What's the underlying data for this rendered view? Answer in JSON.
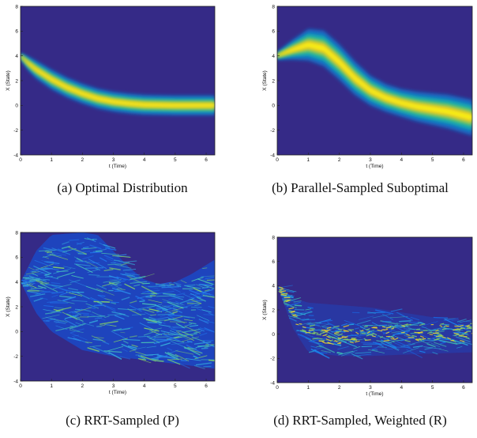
{
  "panels": [
    {
      "caption": "(a) Optimal Distribution",
      "chart_data": {
        "type": "heatmap",
        "title": "",
        "xlabel": "t (Time)",
        "ylabel": "X (State)",
        "xlim": [
          0,
          6.28
        ],
        "ylim": [
          -4,
          8
        ],
        "xticks": [
          "0",
          "1",
          "2",
          "3",
          "4",
          "5",
          "6"
        ],
        "yticks": [
          "-4",
          "-2",
          "0",
          "2",
          "4",
          "6",
          "8"
        ],
        "colormap": "parula",
        "background_color": "#352a87",
        "density_center": {
          "t": [
            0,
            0.25,
            0.5,
            1.0,
            1.5,
            2.0,
            2.5,
            3.0,
            3.5,
            4.0,
            5.0,
            6.28
          ],
          "x": [
            4.0,
            3.4,
            2.9,
            2.1,
            1.45,
            0.95,
            0.55,
            0.3,
            0.15,
            0.05,
            0.0,
            0.0
          ]
        },
        "density_halfwidth": [
          0.15,
          0.35,
          0.45,
          0.5,
          0.5,
          0.5,
          0.5,
          0.5,
          0.5,
          0.5,
          0.5,
          0.5
        ],
        "description_style": "smooth"
      }
    },
    {
      "caption": "(b) Parallel-Sampled Suboptimal",
      "chart_data": {
        "type": "heatmap",
        "title": "",
        "xlabel": "t (Time)",
        "ylabel": "X (State)",
        "xlim": [
          0,
          6.28
        ],
        "ylim": [
          -4,
          8
        ],
        "xticks": [
          "0",
          "1",
          "2",
          "3",
          "4",
          "5",
          "6"
        ],
        "yticks": [
          "-4",
          "-2",
          "0",
          "2",
          "4",
          "6",
          "8"
        ],
        "colormap": "parula",
        "background_color": "#352a87",
        "density_center": {
          "t": [
            0,
            0.5,
            1.0,
            1.5,
            2.0,
            2.5,
            3.0,
            3.5,
            4.0,
            4.5,
            5.0,
            5.5,
            6.28
          ],
          "x": [
            4.0,
            4.5,
            4.9,
            4.6,
            3.5,
            2.2,
            1.2,
            0.6,
            0.2,
            -0.1,
            -0.3,
            -0.5,
            -1.0
          ]
        },
        "density_halfwidth": [
          0.2,
          0.5,
          0.8,
          0.9,
          0.9,
          0.85,
          0.75,
          0.7,
          0.7,
          0.75,
          0.8,
          0.85,
          0.9
        ],
        "description_style": "smooth"
      }
    },
    {
      "caption": "(c) RRT-Sampled (P)",
      "chart_data": {
        "type": "heatmap",
        "title": "",
        "xlabel": "t (Time)",
        "ylabel": "X (State)",
        "xlim": [
          0,
          6.28
        ],
        "ylim": [
          -4,
          8
        ],
        "xticks": [
          "0",
          "1",
          "2",
          "3",
          "4",
          "5",
          "6"
        ],
        "yticks": [
          "-4",
          "-2",
          "0",
          "2",
          "4",
          "6",
          "8"
        ],
        "colormap": "parula",
        "background_color": "#352a87",
        "density_upper": {
          "t": [
            0,
            0.5,
            1.0,
            2.0,
            2.5,
            3.0,
            3.5,
            4.0,
            4.5,
            5.0,
            5.5,
            6.28
          ],
          "x": [
            4.0,
            6.5,
            7.8,
            8.0,
            7.8,
            6.5,
            5.2,
            4.2,
            3.8,
            4.0,
            4.6,
            5.8
          ]
        },
        "density_lower": {
          "t": [
            0,
            0.5,
            1.0,
            2.0,
            3.0,
            4.0,
            5.0,
            6.28
          ],
          "x": [
            4.0,
            1.5,
            0.0,
            -1.5,
            -2.0,
            -2.3,
            -2.6,
            -3.0
          ]
        },
        "description_style": "sparse-streaks"
      }
    },
    {
      "caption": "(d) RRT-Sampled, Weighted (R)",
      "chart_data": {
        "type": "heatmap",
        "title": "",
        "xlabel": "t (Time)",
        "ylabel": "X (State)",
        "xlim": [
          0,
          6.28
        ],
        "ylim": [
          -4,
          8
        ],
        "xticks": [
          "0",
          "1",
          "2",
          "3",
          "4",
          "5",
          "6"
        ],
        "yticks": [
          "-4",
          "-2",
          "0",
          "2",
          "4",
          "6",
          "8"
        ],
        "colormap": "parula",
        "background_color": "#352a87",
        "density_upper": {
          "t": [
            0,
            0.5,
            1.0,
            2.0,
            3.0,
            4.0,
            5.0,
            6.28
          ],
          "x": [
            4.0,
            3.0,
            2.6,
            2.4,
            2.2,
            1.8,
            1.4,
            1.0
          ]
        },
        "density_lower": {
          "t": [
            0,
            0.5,
            1.0,
            2.0,
            3.0,
            4.0,
            5.0,
            6.28
          ],
          "x": [
            4.0,
            0.5,
            -1.5,
            -1.8,
            -1.8,
            -1.7,
            -1.6,
            -1.5
          ]
        },
        "bright_ridge": {
          "t": [
            0,
            0.25,
            0.5,
            0.75,
            1.0,
            2.0,
            3.0,
            4.0,
            5.0,
            6.28
          ],
          "x": [
            4.0,
            2.6,
            1.4,
            0.5,
            0.0,
            -0.1,
            0.0,
            0.1,
            0.1,
            0.2
          ]
        },
        "description_style": "weighted-streaks"
      }
    }
  ]
}
